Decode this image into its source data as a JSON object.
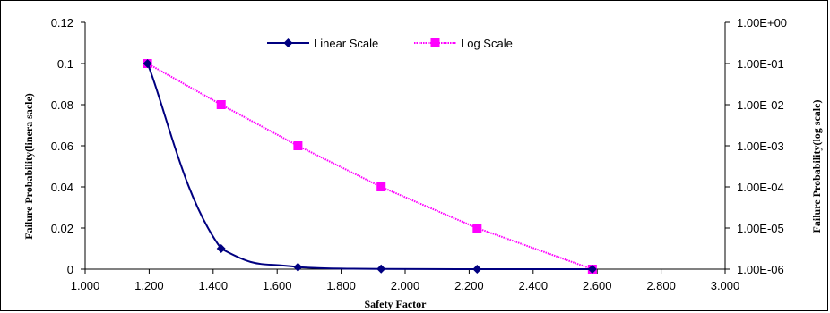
{
  "chart_data": {
    "type": "line",
    "title": "",
    "xlabel": "Safety Factor",
    "ylabel_left": "Failure Probability(linera sacle)",
    "ylabel_right": "Failure Probability(log scale)",
    "xlim": [
      1.0,
      3.0
    ],
    "ylim_left": [
      0,
      0.12
    ],
    "ylim_right": [
      1e-06,
      1
    ],
    "right_axis_scale": "log",
    "x_ticks": [
      "1.000",
      "1.200",
      "1.400",
      "1.600",
      "1.800",
      "2.000",
      "2.200",
      "2.400",
      "2.600",
      "2.800",
      "3.000"
    ],
    "y_left_ticks": [
      "0",
      "0.02",
      "0.04",
      "0.06",
      "0.08",
      "0.1",
      "0.12"
    ],
    "y_right_ticks": [
      "1.00E-06",
      "1.00E-05",
      "1.00E-04",
      "1.00E-03",
      "1.00E-02",
      "1.00E-01",
      "1.00E+00"
    ],
    "grid": false,
    "legend_position": "top-center",
    "series": [
      {
        "name": "Linear Scale",
        "axis": "left",
        "color": "#000080",
        "marker": "diamond",
        "x": [
          1.195,
          1.425,
          1.665,
          1.925,
          2.225,
          2.585
        ],
        "y": [
          0.1,
          0.01,
          0.001,
          0.0001,
          1e-05,
          1e-06
        ]
      },
      {
        "name": "Log Scale",
        "axis": "right",
        "color": "#FF00FF",
        "marker": "square",
        "x": [
          1.195,
          1.425,
          1.665,
          1.925,
          2.225,
          2.585
        ],
        "y": [
          0.1,
          0.01,
          0.001,
          0.0001,
          1e-05,
          1e-06
        ]
      }
    ]
  }
}
